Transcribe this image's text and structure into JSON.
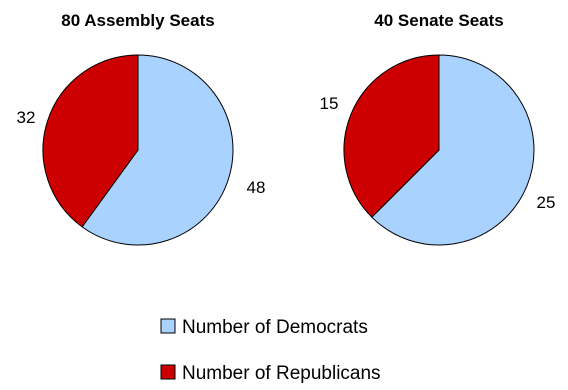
{
  "chart_data": [
    {
      "type": "pie",
      "title": "80 Assembly Seats",
      "categories": [
        "Number of Democrats",
        "Number of Republicans"
      ],
      "values": [
        48,
        32
      ],
      "colors": [
        "#a9d2ff",
        "#cc0000"
      ],
      "start_angle_deg": 0,
      "direction": "clockwise",
      "data_labels": [
        "48",
        "32"
      ]
    },
    {
      "type": "pie",
      "title": "40 Senate Seats",
      "categories": [
        "Number of Democrats",
        "Number of Republicans"
      ],
      "values": [
        25,
        15
      ],
      "colors": [
        "#a9d2ff",
        "#cc0000"
      ],
      "start_angle_deg": 0,
      "direction": "clockwise",
      "data_labels": [
        "25",
        "15"
      ]
    }
  ],
  "legend": {
    "placement": "bottom-center",
    "items": [
      {
        "label": "Number of Democrats",
        "color": "#a9d2ff"
      },
      {
        "label": "Number of Republicans",
        "color": "#cc0000"
      }
    ]
  }
}
